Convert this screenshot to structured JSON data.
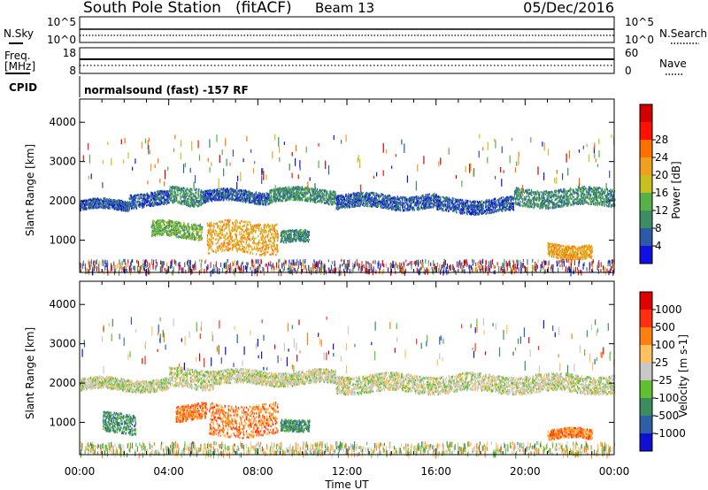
{
  "header": {
    "station": "South Pole Station",
    "mode": "(fitACF)",
    "beam": "Beam 13",
    "date": "05/Dec/2016"
  },
  "strips": {
    "nsky_label": "N.Sky",
    "nsky_ticks": [
      "10^5",
      "10^0"
    ],
    "nsearch_label": "N.Search",
    "nsearch_ticks": [
      "10^5",
      "10^0"
    ],
    "freq_label": "Freq.",
    "freq_unit": "[MHz]",
    "freq_ticks": [
      "18",
      "8"
    ],
    "nave_label": "Nave",
    "nave_ticks": [
      "60",
      "0"
    ],
    "cpid_label": "CPID",
    "cpid_text": "normalsound (fast) -157 RF"
  },
  "chart_data": [
    {
      "type": "heatmap",
      "panel": "power",
      "ylabel": "Slant Range [km]",
      "xlabel": "",
      "x_ticks": [
        "00:00",
        "04:00",
        "08:00",
        "12:00",
        "16:00",
        "20:00",
        "00:00"
      ],
      "y_ticks": [
        1000,
        2000,
        3000,
        4000
      ],
      "x_range_hours": [
        0,
        24
      ],
      "ylim": [
        180,
        4590
      ],
      "colorbar": {
        "label": "Power [dB]",
        "ticks": [
          "4",
          "8",
          "12",
          "16",
          "20",
          "24",
          "28"
        ],
        "colors": [
          "#1010e0",
          "#2c5aa8",
          "#3c8c64",
          "#58b048",
          "#c8c020",
          "#f0a020",
          "#ff7000",
          "#ff1000",
          "#d00000"
        ]
      },
      "scatter_bands": [
        {
          "t0": 0.0,
          "t1": 2.2,
          "r0": 1750,
          "r1": 2000,
          "level": 1
        },
        {
          "t0": 2.2,
          "t1": 4.0,
          "r0": 1850,
          "r1": 2200,
          "level": 1
        },
        {
          "t0": 4.0,
          "t1": 5.5,
          "r0": 1900,
          "r1": 2350,
          "level": 2
        },
        {
          "t0": 5.5,
          "t1": 8.5,
          "r0": 1950,
          "r1": 2250,
          "level": 1
        },
        {
          "t0": 8.5,
          "t1": 11.5,
          "r0": 1950,
          "r1": 2300,
          "level": 2
        },
        {
          "t0": 11.5,
          "t1": 16.0,
          "r0": 1800,
          "r1": 2150,
          "level": 1
        },
        {
          "t0": 16.0,
          "t1": 19.5,
          "r0": 1700,
          "r1": 2050,
          "level": 1
        },
        {
          "t0": 19.5,
          "t1": 24.0,
          "r0": 1850,
          "r1": 2300,
          "level": 2
        },
        {
          "t0": 3.2,
          "t1": 5.5,
          "r0": 1050,
          "r1": 1450,
          "level": 3
        },
        {
          "t0": 5.7,
          "t1": 8.9,
          "r0": 650,
          "r1": 1450,
          "level": 5
        },
        {
          "t0": 9.0,
          "t1": 10.3,
          "r0": 900,
          "r1": 1200,
          "level": 2
        },
        {
          "t0": 21.0,
          "t1": 23.0,
          "r0": 550,
          "r1": 900,
          "level": 5
        }
      ]
    },
    {
      "type": "heatmap",
      "panel": "velocity",
      "ylabel": "Slant Range [km]",
      "xlabel": "Time UT",
      "x_ticks": [
        "00:00",
        "04:00",
        "08:00",
        "12:00",
        "16:00",
        "20:00",
        "00:00"
      ],
      "y_ticks": [
        1000,
        2000,
        3000,
        4000
      ],
      "x_range_hours": [
        0,
        24
      ],
      "ylim": [
        180,
        4590
      ],
      "colorbar": {
        "label": "Velocity [m s-1]",
        "ticks": [
          "1000",
          "500",
          "100",
          "25",
          "-25",
          "-100",
          "-500",
          "-1000"
        ],
        "colors": [
          "#1010d0",
          "#2f5fa8",
          "#3c8c60",
          "#60c030",
          "#c8c8c8",
          "#ffc060",
          "#ff8010",
          "#ff3010",
          "#e00000"
        ]
      },
      "scatter_bands": [
        {
          "t0": 0.0,
          "t1": 4.0,
          "r0": 1800,
          "r1": 2100,
          "level": 4
        },
        {
          "t0": 4.0,
          "t1": 6.0,
          "r0": 1850,
          "r1": 2350,
          "level": 4
        },
        {
          "t0": 6.0,
          "t1": 11.5,
          "r0": 1950,
          "r1": 2300,
          "level": 4
        },
        {
          "t0": 11.5,
          "t1": 24.0,
          "r0": 1750,
          "r1": 2200,
          "level": 4
        },
        {
          "t0": 4.3,
          "t1": 5.7,
          "r0": 1050,
          "r1": 1450,
          "level": 6
        },
        {
          "t0": 5.8,
          "t1": 8.9,
          "r0": 650,
          "r1": 1450,
          "level": 6
        },
        {
          "t0": 1.0,
          "t1": 2.5,
          "r0": 700,
          "r1": 1200,
          "level": 2
        },
        {
          "t0": 9.0,
          "t1": 10.3,
          "r0": 800,
          "r1": 1100,
          "level": 2
        },
        {
          "t0": 21.0,
          "t1": 23.0,
          "r0": 550,
          "r1": 800,
          "level": 6
        }
      ]
    }
  ]
}
